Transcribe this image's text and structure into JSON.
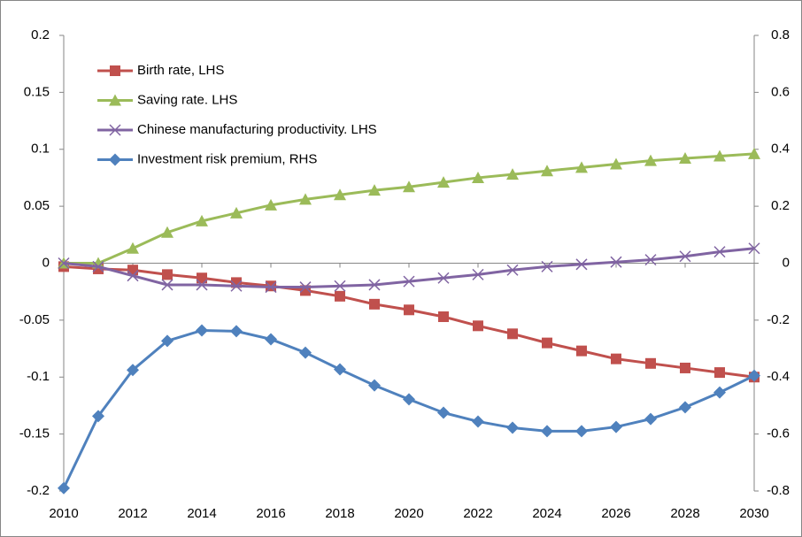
{
  "chart_data": {
    "type": "line",
    "x": [
      2010,
      2011,
      2012,
      2013,
      2014,
      2015,
      2016,
      2017,
      2018,
      2019,
      2020,
      2021,
      2022,
      2023,
      2024,
      2025,
      2026,
      2027,
      2028,
      2029,
      2030
    ],
    "xlim": [
      2010,
      2030
    ],
    "xticks": [
      2010,
      2012,
      2014,
      2016,
      2018,
      2020,
      2022,
      2024,
      2026,
      2028,
      2030
    ],
    "ylim": [
      -0.2,
      0.2
    ],
    "yticks": [
      -0.2,
      -0.15,
      -0.1,
      -0.05,
      0,
      0.05,
      0.1,
      0.15,
      0.2
    ],
    "y2lim": [
      -0.8,
      0.8
    ],
    "y2ticks": [
      -0.8,
      -0.6,
      -0.4,
      -0.2,
      0,
      0.2,
      0.4,
      0.6,
      0.8
    ],
    "legend": "upper left",
    "series": [
      {
        "name": "Birth rate, LHS",
        "color": "#c0504d",
        "marker": "square",
        "values": [
          -0.003,
          -0.005,
          -0.006,
          -0.01,
          -0.013,
          -0.017,
          -0.02,
          -0.024,
          -0.029,
          -0.036,
          -0.041,
          -0.047,
          -0.055,
          -0.062,
          -0.07,
          -0.077,
          -0.084,
          -0.088,
          -0.092,
          -0.096,
          -0.1
        ]
      },
      {
        "name": "Saving rate. LHS",
        "color": "#9bbb59",
        "marker": "triangle",
        "values": [
          0,
          0,
          0.013,
          0.027,
          0.037,
          0.044,
          0.051,
          0.056,
          0.06,
          0.064,
          0.067,
          0.071,
          0.075,
          0.078,
          0.081,
          0.084,
          0.087,
          0.09,
          0.092,
          0.094,
          0.096
        ]
      },
      {
        "name": "Chinese manufacturing productivity. LHS",
        "color": "#8064a2",
        "marker": "x",
        "values": [
          0,
          -0.003,
          -0.011,
          -0.019,
          -0.019,
          -0.02,
          -0.021,
          -0.021,
          -0.02,
          -0.019,
          -0.016,
          -0.013,
          -0.01,
          -0.006,
          -0.003,
          -0.001,
          0.001,
          0.003,
          0.006,
          0.01,
          0.013
        ]
      },
      {
        "name": "Investment risk premium, RHS",
        "color": "#4f81bd",
        "marker": "diamond",
        "axis": "y2",
        "values": [
          -0.79,
          -0.537,
          -0.375,
          -0.273,
          -0.236,
          -0.239,
          -0.267,
          -0.314,
          -0.373,
          -0.429,
          -0.478,
          -0.525,
          -0.556,
          -0.578,
          -0.59,
          -0.59,
          -0.575,
          -0.547,
          -0.506,
          -0.454,
          -0.395
        ]
      }
    ]
  }
}
